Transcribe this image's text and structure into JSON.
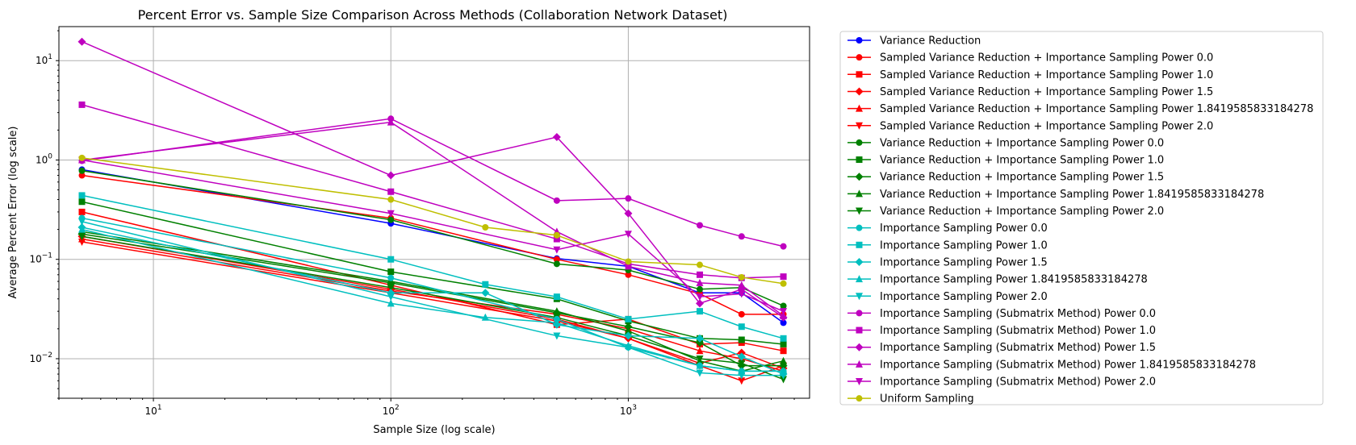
{
  "chart_data": {
    "type": "line",
    "title": "Percent Error vs. Sample Size Comparison Across Methods (Collaboration Network Dataset)",
    "xlabel": "Sample Size (log scale)",
    "ylabel": "Average Percent Error (log scale)",
    "xscale": "log",
    "yscale": "log",
    "xlim": [
      4,
      5800
    ],
    "ylim": [
      0.004,
      22
    ],
    "grid": true,
    "legend_position": "outside-right",
    "x_ticks": [
      {
        "value": 10,
        "base": "10",
        "exp": "1"
      },
      {
        "value": 100,
        "base": "10",
        "exp": "2"
      },
      {
        "value": 1000,
        "base": "10",
        "exp": "3"
      }
    ],
    "y_ticks": [
      {
        "value": 0.01,
        "base": "10",
        "exp": "−2"
      },
      {
        "value": 0.1,
        "base": "10",
        "exp": "−1"
      },
      {
        "value": 1,
        "base": "10",
        "exp": "0"
      },
      {
        "value": 10,
        "base": "10",
        "exp": "1"
      }
    ],
    "series": [
      {
        "name": "Variance Reduction",
        "color": "#0000ff",
        "marker": "circle",
        "x": [
          5,
          100,
          500,
          1000,
          2000,
          3000,
          4500
        ],
        "y": [
          0.8,
          0.23,
          0.102,
          0.085,
          0.046,
          0.046,
          0.023
        ]
      },
      {
        "name": "Sampled Variance Reduction + Importance Sampling Power 0.0",
        "color": "#ff0000",
        "marker": "circle",
        "x": [
          5,
          100,
          500,
          1000,
          2000,
          3000,
          4500
        ],
        "y": [
          0.7,
          0.26,
          0.1,
          0.07,
          0.045,
          0.028,
          0.028
        ]
      },
      {
        "name": "Sampled Variance Reduction + Importance Sampling Power 1.0",
        "color": "#ff0000",
        "marker": "square",
        "x": [
          5,
          100,
          500,
          1000,
          2000,
          3000,
          4500
        ],
        "y": [
          0.3,
          0.055,
          0.022,
          0.025,
          0.014,
          0.0145,
          0.012
        ]
      },
      {
        "name": "Sampled Variance Reduction + Importance Sampling Power 1.5",
        "color": "#ff0000",
        "marker": "diamond",
        "x": [
          5,
          100,
          500,
          1000,
          2000,
          3000,
          4500
        ],
        "y": [
          0.17,
          0.05,
          0.025,
          0.016,
          0.009,
          0.0115,
          0.008
        ]
      },
      {
        "name": "Sampled Variance Reduction + Importance Sampling Power 1.8419585833184278",
        "color": "#ff0000",
        "marker": "triangle-up",
        "x": [
          5,
          100,
          500,
          1000,
          2000,
          3000,
          4500
        ],
        "y": [
          0.16,
          0.048,
          0.028,
          0.02,
          0.012,
          0.01,
          0.0075
        ]
      },
      {
        "name": "Sampled Variance Reduction + Importance Sampling Power 2.0",
        "color": "#ff0000",
        "marker": "triangle-down",
        "x": [
          5,
          100,
          500,
          1000,
          2000,
          3000,
          4500
        ],
        "y": [
          0.15,
          0.046,
          0.024,
          0.016,
          0.0085,
          0.006,
          0.0085
        ]
      },
      {
        "name": "Variance Reduction + Importance Sampling Power 0.0",
        "color": "#008000",
        "marker": "circle",
        "x": [
          5,
          100,
          500,
          1000,
          2000,
          3000,
          4500
        ],
        "y": [
          0.78,
          0.25,
          0.09,
          0.078,
          0.05,
          0.052,
          0.034
        ]
      },
      {
        "name": "Variance Reduction + Importance Sampling Power 1.0",
        "color": "#008000",
        "marker": "square",
        "x": [
          5,
          100,
          500,
          1000,
          2000,
          3000,
          4500
        ],
        "y": [
          0.38,
          0.075,
          0.04,
          0.024,
          0.016,
          0.0155,
          0.014
        ]
      },
      {
        "name": "Variance Reduction + Importance Sampling Power 1.5",
        "color": "#008000",
        "marker": "diamond",
        "x": [
          5,
          100,
          500,
          1000,
          2000,
          3000,
          4500
        ],
        "y": [
          0.18,
          0.058,
          0.029,
          0.021,
          0.0145,
          0.0085,
          0.0085
        ]
      },
      {
        "name": "Variance Reduction + Importance Sampling Power 1.8419585833184278",
        "color": "#008000",
        "marker": "triangle-up",
        "x": [
          5,
          100,
          500,
          1000,
          2000,
          3000,
          4500
        ],
        "y": [
          0.19,
          0.06,
          0.03,
          0.019,
          0.0095,
          0.0075,
          0.0095
        ]
      },
      {
        "name": "Variance Reduction + Importance Sampling Power 2.0",
        "color": "#008000",
        "marker": "triangle-down",
        "x": [
          5,
          100,
          500,
          1000,
          2000,
          3000,
          4500
        ],
        "y": [
          0.17,
          0.052,
          0.026,
          0.017,
          0.01,
          0.009,
          0.0062
        ]
      },
      {
        "name": "Importance Sampling Power 0.0",
        "color": "#00bfbf",
        "marker": "circle",
        "x": [
          5,
          100,
          500,
          1000,
          2000,
          3000,
          4500
        ],
        "y": [
          0.26,
          0.065,
          0.025,
          0.013,
          0.0085,
          0.0075,
          0.0075
        ]
      },
      {
        "name": "Importance Sampling Power 1.0",
        "color": "#00bfbf",
        "marker": "square",
        "x": [
          5,
          100,
          250,
          500,
          1000,
          2000,
          3000,
          4500
        ],
        "y": [
          0.44,
          0.1,
          0.056,
          0.042,
          0.025,
          0.03,
          0.021,
          0.016
        ]
      },
      {
        "name": "Importance Sampling Power 1.5",
        "color": "#00bfbf",
        "marker": "diamond",
        "x": [
          5,
          100,
          250,
          500,
          1000,
          2000,
          3000,
          4500
        ],
        "y": [
          0.21,
          0.046,
          0.046,
          0.022,
          0.017,
          0.016,
          0.0105,
          0.007
        ]
      },
      {
        "name": "Importance Sampling Power 1.8419585833184278",
        "color": "#00bfbf",
        "marker": "triangle-up",
        "x": [
          5,
          100,
          250,
          500,
          1000,
          2000,
          3000,
          4500
        ],
        "y": [
          0.2,
          0.036,
          0.026,
          0.023,
          0.0135,
          0.0085,
          0.0075,
          0.0075
        ]
      },
      {
        "name": "Importance Sampling Power 2.0",
        "color": "#00bfbf",
        "marker": "triangle-down",
        "x": [
          5,
          100,
          500,
          1000,
          2000,
          3000,
          4500
        ],
        "y": [
          0.24,
          0.042,
          0.017,
          0.013,
          0.0072,
          0.0068,
          0.0068
        ]
      },
      {
        "name": "Importance Sampling (Submatrix Method) Power 0.0",
        "color": "#bf00bf",
        "marker": "circle",
        "x": [
          5,
          100,
          500,
          1000,
          2000,
          3000,
          4500
        ],
        "y": [
          0.98,
          2.6,
          0.39,
          0.41,
          0.22,
          0.17,
          0.135
        ]
      },
      {
        "name": "Importance Sampling (Submatrix Method) Power 1.0",
        "color": "#bf00bf",
        "marker": "square",
        "x": [
          5,
          100,
          500,
          1000,
          2000,
          3000,
          4500
        ],
        "y": [
          3.6,
          0.48,
          0.16,
          0.09,
          0.07,
          0.065,
          0.067
        ]
      },
      {
        "name": "Importance Sampling (Submatrix Method) Power 1.5",
        "color": "#bf00bf",
        "marker": "diamond",
        "x": [
          5,
          100,
          500,
          1000,
          2000,
          3000,
          4500
        ],
        "y": [
          15.5,
          0.7,
          1.7,
          0.29,
          0.036,
          0.05,
          0.026
        ]
      },
      {
        "name": "Importance Sampling (Submatrix Method) Power 1.8419585833184278",
        "color": "#bf00bf",
        "marker": "triangle-up",
        "x": [
          5,
          100,
          500,
          1000,
          2000,
          3000,
          4500
        ],
        "y": [
          1.0,
          2.4,
          0.19,
          0.085,
          0.058,
          0.055,
          0.027
        ]
      },
      {
        "name": "Importance Sampling (Submatrix Method) Power 2.0",
        "color": "#bf00bf",
        "marker": "triangle-down",
        "x": [
          5,
          100,
          500,
          1000,
          2000,
          3000,
          4500
        ],
        "y": [
          1.0,
          0.29,
          0.125,
          0.18,
          0.042,
          0.045,
          0.03
        ]
      },
      {
        "name": "Uniform Sampling",
        "color": "#bfbf00",
        "marker": "circle",
        "x": [
          5,
          100,
          250,
          500,
          1000,
          2000,
          3000,
          4500
        ],
        "y": [
          1.05,
          0.4,
          0.21,
          0.175,
          0.095,
          0.088,
          0.066,
          0.057
        ]
      }
    ]
  }
}
